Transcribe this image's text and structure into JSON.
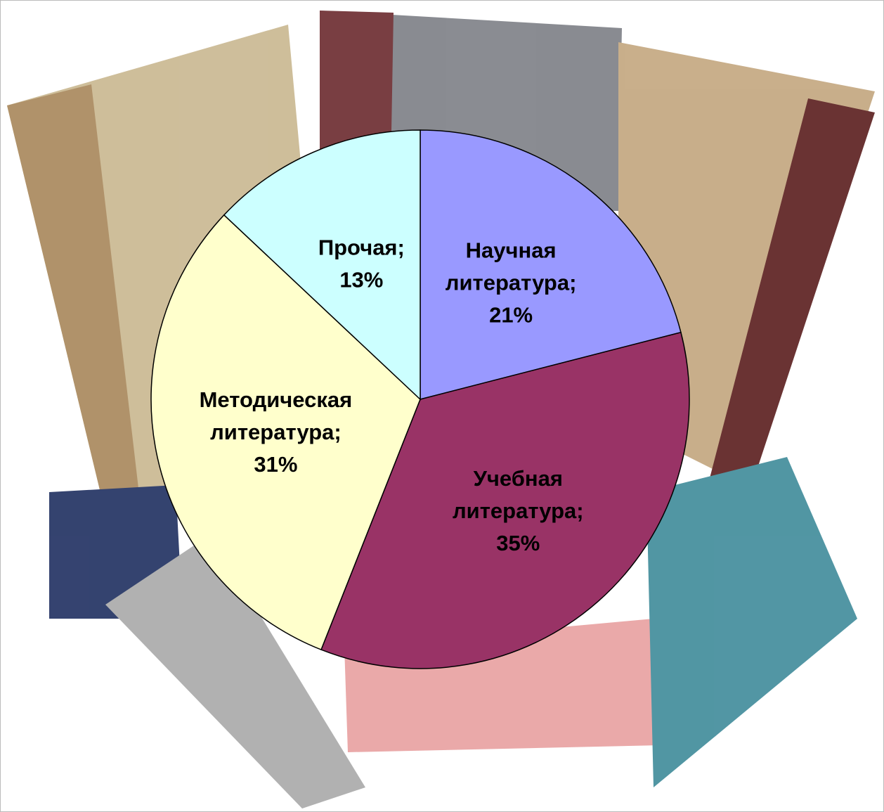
{
  "chart_data": {
    "type": "pie",
    "categories": [
      "Научная литература",
      "Учебная литература",
      "Методическая литература",
      "Прочая"
    ],
    "values": [
      21,
      35,
      31,
      13
    ],
    "value_labels": [
      "21%",
      "35%",
      "31%",
      "13%"
    ],
    "label_separator": ";",
    "colors": [
      "#9999ff",
      "#993366",
      "#ffffcc",
      "#ccffff"
    ]
  }
}
